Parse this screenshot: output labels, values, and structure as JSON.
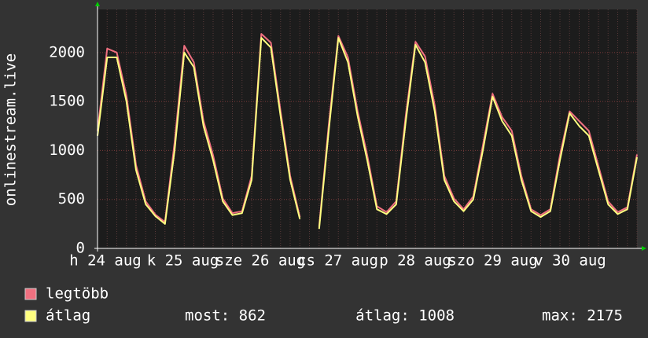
{
  "chart_data": {
    "type": "line",
    "y_label": "onlinestream.live",
    "x_labels": [
      "h 24 aug",
      "k 25 aug",
      "sze 26 aug",
      "cs 27 aug",
      "p 28 aug",
      "szo 29 aug",
      "v 30 aug"
    ],
    "ylim": [
      0,
      2440
    ],
    "yticks": [
      0,
      500,
      1000,
      1500,
      2000
    ],
    "grid": true,
    "series": [
      {
        "name": "legtöbb",
        "color": "#f07080",
        "values": [
          1200,
          2040,
          2000,
          1560,
          850,
          480,
          345,
          270,
          1080,
          2070,
          1900,
          1300,
          950,
          510,
          360,
          380,
          740,
          2190,
          2100,
          1400,
          740,
          320,
          null,
          220,
          1260,
          2170,
          1950,
          1400,
          950,
          430,
          370,
          480,
          1360,
          2110,
          1960,
          1460,
          740,
          510,
          400,
          530,
          1050,
          1580,
          1340,
          1200,
          740,
          400,
          340,
          400,
          950,
          1400,
          1300,
          1200,
          840,
          480,
          370,
          420,
          960
        ]
      },
      {
        "name": "átlag",
        "color": "#ffff80",
        "values": [
          1150,
          1950,
          1950,
          1500,
          800,
          450,
          330,
          250,
          1000,
          2000,
          1850,
          1250,
          900,
          480,
          340,
          360,
          700,
          2150,
          2050,
          1350,
          700,
          300,
          null,
          200,
          1200,
          2150,
          1900,
          1350,
          900,
          400,
          350,
          450,
          1300,
          2080,
          1900,
          1400,
          700,
          480,
          380,
          500,
          1000,
          1550,
          1300,
          1150,
          700,
          380,
          320,
          380,
          900,
          1380,
          1250,
          1150,
          800,
          450,
          350,
          400,
          930
        ]
      }
    ],
    "stats": [
      "most: 862",
      "átlag: 1008",
      "max: 2175"
    ]
  }
}
